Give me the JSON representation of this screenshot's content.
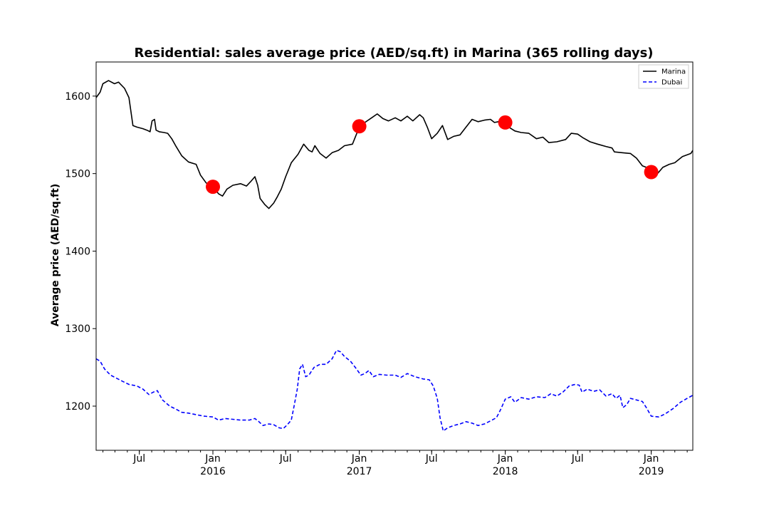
{
  "chart_data": {
    "type": "line",
    "title": "Residential: sales average price (AED/sq.ft) in Marina (365 rolling days)",
    "xlabel": "",
    "ylabel": "Average price (AED/sq.ft)",
    "xlim": [
      "2015-03-15",
      "2019-04-15"
    ],
    "ylim": [
      1143,
      1644
    ],
    "y_ticks": [
      1200,
      1300,
      1400,
      1500,
      1600
    ],
    "x_major_ticks": [
      {
        "date": "2015-07-01",
        "label": "Jul",
        "sublabel": ""
      },
      {
        "date": "2016-01-01",
        "label": "Jan",
        "sublabel": "2016"
      },
      {
        "date": "2016-07-01",
        "label": "Jul",
        "sublabel": ""
      },
      {
        "date": "2017-01-01",
        "label": "Jan",
        "sublabel": "2017"
      },
      {
        "date": "2017-07-01",
        "label": "Jul",
        "sublabel": ""
      },
      {
        "date": "2018-01-01",
        "label": "Jan",
        "sublabel": "2018"
      },
      {
        "date": "2018-07-01",
        "label": "Jul",
        "sublabel": ""
      },
      {
        "date": "2019-01-01",
        "label": "Jan",
        "sublabel": "2019"
      }
    ],
    "grid": false,
    "legend_position": "top-right",
    "series": [
      {
        "name": "Marina",
        "color": "#000000",
        "style": "solid",
        "points": [
          [
            "2015-03-15",
            1598
          ],
          [
            "2015-03-25",
            1605
          ],
          [
            "2015-04-01",
            1616
          ],
          [
            "2015-04-15",
            1620
          ],
          [
            "2015-04-30",
            1616
          ],
          [
            "2015-05-10",
            1618
          ],
          [
            "2015-05-25",
            1610
          ],
          [
            "2015-06-05",
            1598
          ],
          [
            "2015-06-10",
            1580
          ],
          [
            "2015-06-15",
            1562
          ],
          [
            "2015-06-25",
            1560
          ],
          [
            "2015-07-10",
            1558
          ],
          [
            "2015-07-20",
            1556
          ],
          [
            "2015-07-28",
            1554
          ],
          [
            "2015-08-02",
            1568
          ],
          [
            "2015-08-08",
            1570
          ],
          [
            "2015-08-12",
            1556
          ],
          [
            "2015-08-20",
            1554
          ],
          [
            "2015-09-01",
            1553
          ],
          [
            "2015-09-10",
            1552
          ],
          [
            "2015-09-20",
            1545
          ],
          [
            "2015-10-01",
            1535
          ],
          [
            "2015-10-15",
            1523
          ],
          [
            "2015-11-01",
            1515
          ],
          [
            "2015-11-20",
            1512
          ],
          [
            "2015-12-01",
            1498
          ],
          [
            "2015-12-15",
            1488
          ],
          [
            "2016-01-01",
            1483
          ],
          [
            "2016-01-15",
            1474
          ],
          [
            "2016-01-25",
            1471
          ],
          [
            "2016-02-05",
            1480
          ],
          [
            "2016-02-20",
            1485
          ],
          [
            "2016-03-10",
            1487
          ],
          [
            "2016-03-25",
            1484
          ],
          [
            "2016-04-05",
            1490
          ],
          [
            "2016-04-15",
            1496
          ],
          [
            "2016-04-22",
            1485
          ],
          [
            "2016-04-28",
            1468
          ],
          [
            "2016-05-10",
            1460
          ],
          [
            "2016-05-20",
            1455
          ],
          [
            "2016-06-01",
            1462
          ],
          [
            "2016-06-10",
            1470
          ],
          [
            "2016-06-20",
            1480
          ],
          [
            "2016-07-01",
            1496
          ],
          [
            "2016-07-15",
            1514
          ],
          [
            "2016-08-01",
            1525
          ],
          [
            "2016-08-15",
            1538
          ],
          [
            "2016-08-28",
            1530
          ],
          [
            "2016-09-05",
            1528
          ],
          [
            "2016-09-12",
            1536
          ],
          [
            "2016-09-25",
            1526
          ],
          [
            "2016-10-10",
            1520
          ],
          [
            "2016-10-25",
            1527
          ],
          [
            "2016-11-10",
            1530
          ],
          [
            "2016-11-25",
            1536
          ],
          [
            "2016-12-15",
            1538
          ],
          [
            "2017-01-01",
            1560
          ],
          [
            "2017-01-15",
            1566
          ],
          [
            "2017-02-01",
            1572
          ],
          [
            "2017-02-15",
            1577
          ],
          [
            "2017-03-01",
            1571
          ],
          [
            "2017-03-15",
            1568
          ],
          [
            "2017-04-01",
            1572
          ],
          [
            "2017-04-15",
            1568
          ],
          [
            "2017-05-01",
            1574
          ],
          [
            "2017-05-15",
            1568
          ],
          [
            "2017-06-01",
            1576
          ],
          [
            "2017-06-10",
            1572
          ],
          [
            "2017-06-20",
            1560
          ],
          [
            "2017-07-01",
            1545
          ],
          [
            "2017-07-15",
            1552
          ],
          [
            "2017-07-28",
            1562
          ],
          [
            "2017-08-10",
            1544
          ],
          [
            "2017-08-25",
            1548
          ],
          [
            "2017-09-10",
            1550
          ],
          [
            "2017-09-25",
            1560
          ],
          [
            "2017-10-10",
            1570
          ],
          [
            "2017-10-25",
            1567
          ],
          [
            "2017-11-10",
            1569
          ],
          [
            "2017-11-25",
            1570
          ],
          [
            "2017-12-05",
            1566
          ],
          [
            "2017-12-15",
            1567
          ],
          [
            "2018-01-01",
            1566
          ],
          [
            "2018-01-10",
            1560
          ],
          [
            "2018-01-25",
            1555
          ],
          [
            "2018-02-10",
            1553
          ],
          [
            "2018-03-01",
            1552
          ],
          [
            "2018-03-20",
            1545
          ],
          [
            "2018-04-05",
            1547
          ],
          [
            "2018-04-20",
            1540
          ],
          [
            "2018-05-10",
            1541
          ],
          [
            "2018-06-01",
            1544
          ],
          [
            "2018-06-15",
            1552
          ],
          [
            "2018-07-01",
            1551
          ],
          [
            "2018-07-15",
            1546
          ],
          [
            "2018-08-01",
            1541
          ],
          [
            "2018-08-20",
            1538
          ],
          [
            "2018-09-10",
            1535
          ],
          [
            "2018-09-25",
            1533
          ],
          [
            "2018-10-01",
            1528
          ],
          [
            "2018-10-20",
            1527
          ],
          [
            "2018-11-10",
            1526
          ],
          [
            "2018-11-25",
            1520
          ],
          [
            "2018-12-10",
            1510
          ],
          [
            "2018-12-20",
            1508
          ],
          [
            "2019-01-01",
            1502
          ],
          [
            "2019-01-15",
            1499
          ],
          [
            "2019-01-30",
            1508
          ],
          [
            "2019-02-15",
            1512
          ],
          [
            "2019-03-01",
            1514
          ],
          [
            "2019-03-20",
            1522
          ],
          [
            "2019-04-10",
            1526
          ],
          [
            "2019-04-15",
            1530
          ]
        ]
      },
      {
        "name": "Dubai",
        "color": "#0000ff",
        "style": "dashed",
        "points": [
          [
            "2015-03-15",
            1261
          ],
          [
            "2015-03-25",
            1258
          ],
          [
            "2015-04-05",
            1248
          ],
          [
            "2015-04-20",
            1240
          ],
          [
            "2015-05-05",
            1236
          ],
          [
            "2015-05-20",
            1232
          ],
          [
            "2015-06-05",
            1228
          ],
          [
            "2015-06-25",
            1226
          ],
          [
            "2015-07-10",
            1222
          ],
          [
            "2015-07-25",
            1215
          ],
          [
            "2015-08-05",
            1218
          ],
          [
            "2015-08-15",
            1220
          ],
          [
            "2015-08-28",
            1208
          ],
          [
            "2015-09-15",
            1200
          ],
          [
            "2015-10-01",
            1196
          ],
          [
            "2015-10-15",
            1192
          ],
          [
            "2015-11-01",
            1191
          ],
          [
            "2015-11-20",
            1189
          ],
          [
            "2015-12-10",
            1187
          ],
          [
            "2016-01-01",
            1186
          ],
          [
            "2016-01-15",
            1182
          ],
          [
            "2016-02-01",
            1184
          ],
          [
            "2016-02-20",
            1183
          ],
          [
            "2016-03-10",
            1182
          ],
          [
            "2016-04-01",
            1182
          ],
          [
            "2016-04-15",
            1184
          ],
          [
            "2016-04-25",
            1180
          ],
          [
            "2016-05-05",
            1175
          ],
          [
            "2016-05-20",
            1177
          ],
          [
            "2016-06-01",
            1176
          ],
          [
            "2016-06-15",
            1172
          ],
          [
            "2016-06-25",
            1171
          ],
          [
            "2016-07-05",
            1176
          ],
          [
            "2016-07-15",
            1182
          ],
          [
            "2016-07-22",
            1200
          ],
          [
            "2016-07-30",
            1222
          ],
          [
            "2016-08-05",
            1248
          ],
          [
            "2016-08-12",
            1254
          ],
          [
            "2016-08-20",
            1238
          ],
          [
            "2016-08-28",
            1240
          ],
          [
            "2016-09-10",
            1250
          ],
          [
            "2016-09-25",
            1254
          ],
          [
            "2016-10-10",
            1254
          ],
          [
            "2016-10-25",
            1261
          ],
          [
            "2016-11-05",
            1272
          ],
          [
            "2016-11-15",
            1270
          ],
          [
            "2016-11-25",
            1264
          ],
          [
            "2016-12-10",
            1258
          ],
          [
            "2016-12-25",
            1248
          ],
          [
            "2017-01-05",
            1240
          ],
          [
            "2017-01-15",
            1242
          ],
          [
            "2017-01-25",
            1246
          ],
          [
            "2017-02-05",
            1238
          ],
          [
            "2017-02-20",
            1241
          ],
          [
            "2017-03-10",
            1240
          ],
          [
            "2017-04-01",
            1240
          ],
          [
            "2017-04-15",
            1237
          ],
          [
            "2017-05-01",
            1242
          ],
          [
            "2017-05-20",
            1238
          ],
          [
            "2017-06-10",
            1235
          ],
          [
            "2017-06-25",
            1234
          ],
          [
            "2017-07-05",
            1226
          ],
          [
            "2017-07-15",
            1210
          ],
          [
            "2017-07-22",
            1185
          ],
          [
            "2017-07-30",
            1168
          ],
          [
            "2017-08-10",
            1172
          ],
          [
            "2017-08-25",
            1175
          ],
          [
            "2017-09-10",
            1177
          ],
          [
            "2017-09-25",
            1180
          ],
          [
            "2017-10-10",
            1178
          ],
          [
            "2017-10-25",
            1175
          ],
          [
            "2017-11-10",
            1177
          ],
          [
            "2017-11-25",
            1181
          ],
          [
            "2017-12-10",
            1185
          ],
          [
            "2017-12-20",
            1195
          ],
          [
            "2018-01-01",
            1209
          ],
          [
            "2018-01-15",
            1212
          ],
          [
            "2018-01-25",
            1205
          ],
          [
            "2018-02-10",
            1211
          ],
          [
            "2018-03-01",
            1209
          ],
          [
            "2018-03-20",
            1212
          ],
          [
            "2018-04-10",
            1211
          ],
          [
            "2018-04-25",
            1216
          ],
          [
            "2018-05-10",
            1213
          ],
          [
            "2018-05-25",
            1218
          ],
          [
            "2018-06-10",
            1226
          ],
          [
            "2018-06-25",
            1228
          ],
          [
            "2018-07-05",
            1227
          ],
          [
            "2018-07-12",
            1218
          ],
          [
            "2018-07-25",
            1222
          ],
          [
            "2018-08-10",
            1219
          ],
          [
            "2018-08-25",
            1221
          ],
          [
            "2018-09-10",
            1213
          ],
          [
            "2018-09-25",
            1216
          ],
          [
            "2018-10-05",
            1210
          ],
          [
            "2018-10-15",
            1214
          ],
          [
            "2018-10-22",
            1198
          ],
          [
            "2018-11-01",
            1202
          ],
          [
            "2018-11-10",
            1210
          ],
          [
            "2018-11-25",
            1208
          ],
          [
            "2018-12-10",
            1206
          ],
          [
            "2018-12-20",
            1198
          ],
          [
            "2019-01-01",
            1187
          ],
          [
            "2019-01-20",
            1186
          ],
          [
            "2019-02-05",
            1190
          ],
          [
            "2019-02-25",
            1197
          ],
          [
            "2019-03-15",
            1205
          ],
          [
            "2019-04-01",
            1210
          ],
          [
            "2019-04-15",
            1214
          ]
        ]
      }
    ],
    "markers": {
      "color": "#ff0000",
      "points": [
        [
          "2016-01-01",
          1483
        ],
        [
          "2017-01-01",
          1561
        ],
        [
          "2018-01-01",
          1566
        ],
        [
          "2019-01-01",
          1502
        ]
      ]
    }
  }
}
